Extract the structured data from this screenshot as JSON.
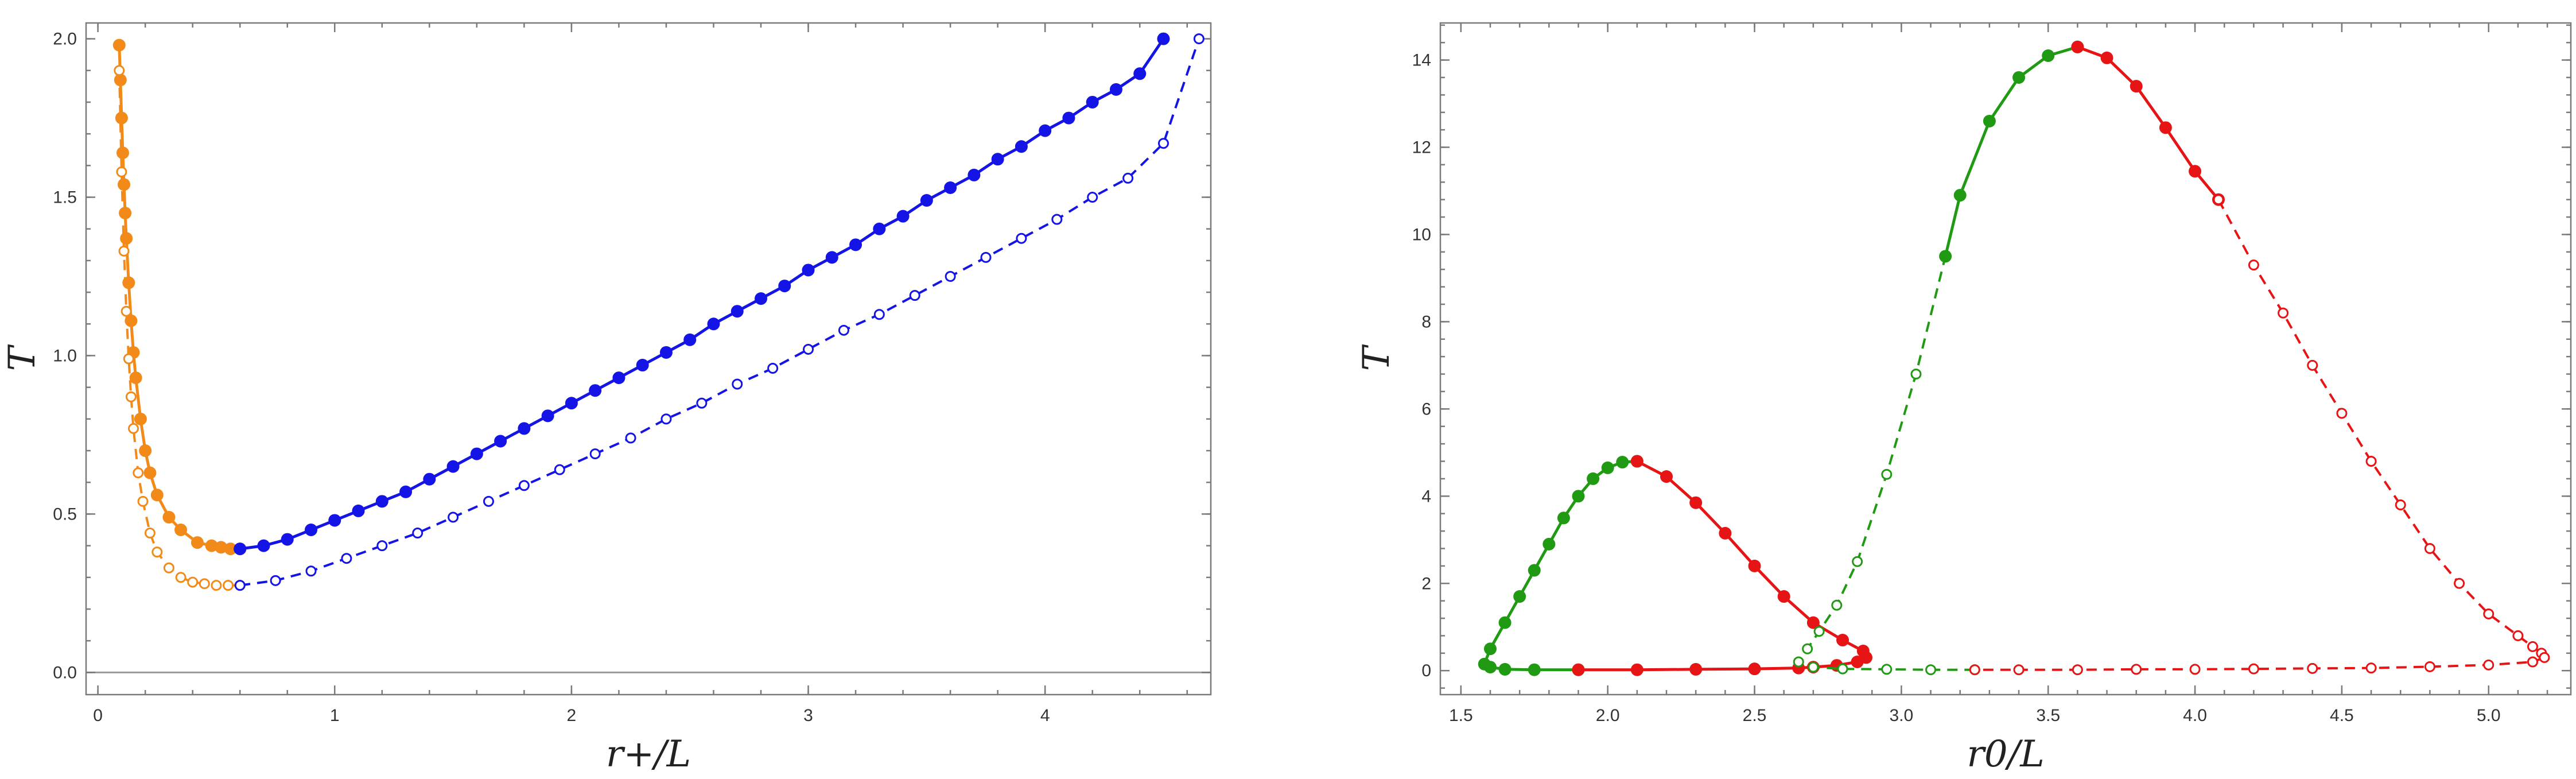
{
  "chart_data": [
    {
      "type": "line",
      "xlabel": "r+/L",
      "ylabel": "T",
      "xlim": [
        -0.05,
        4.7
      ],
      "ylim": [
        -0.07,
        2.05
      ],
      "xticks": [
        0,
        1,
        2,
        3,
        4
      ],
      "yticks": [
        0.0,
        0.5,
        1.0,
        1.5,
        2.0
      ],
      "xtick_labels": [
        "0",
        "1",
        "2",
        "3",
        "4"
      ],
      "ytick_labels": [
        "0.0",
        "0.5",
        "1.0",
        "1.5",
        "2.0"
      ],
      "zero_line": true,
      "grid": false,
      "legend": "none",
      "series": [
        {
          "color": "#f28a1a",
          "line": "solid",
          "marker": "filled",
          "x": [
            0.09,
            0.095,
            0.1,
            0.105,
            0.11,
            0.115,
            0.12,
            0.13,
            0.14,
            0.15,
            0.16,
            0.18,
            0.2,
            0.22,
            0.25,
            0.3,
            0.35,
            0.42,
            0.48,
            0.52,
            0.56,
            0.6
          ],
          "y": [
            1.98,
            1.87,
            1.75,
            1.64,
            1.54,
            1.45,
            1.37,
            1.23,
            1.11,
            1.01,
            0.93,
            0.8,
            0.7,
            0.63,
            0.56,
            0.49,
            0.45,
            0.41,
            0.4,
            0.395,
            0.39,
            0.39
          ]
        },
        {
          "color": "#f28a1a",
          "line": "dashed",
          "marker": "open",
          "x": [
            0.09,
            0.1,
            0.11,
            0.12,
            0.13,
            0.14,
            0.15,
            0.17,
            0.19,
            0.22,
            0.25,
            0.3,
            0.35,
            0.4,
            0.45,
            0.5,
            0.55,
            0.6
          ],
          "y": [
            1.9,
            1.58,
            1.33,
            1.14,
            0.99,
            0.87,
            0.77,
            0.63,
            0.54,
            0.44,
            0.38,
            0.33,
            0.3,
            0.285,
            0.28,
            0.275,
            0.275,
            0.275
          ]
        },
        {
          "color": "#1414e6",
          "line": "solid",
          "marker": "filled",
          "x": [
            0.6,
            0.7,
            0.8,
            0.9,
            1.0,
            1.1,
            1.2,
            1.3,
            1.4,
            1.5,
            1.6,
            1.7,
            1.8,
            1.9,
            2.0,
            2.1,
            2.2,
            2.3,
            2.4,
            2.5,
            2.6,
            2.7,
            2.8,
            2.9,
            3.0,
            3.1,
            3.2,
            3.3,
            3.4,
            3.5,
            3.6,
            3.7,
            3.8,
            3.9,
            4.0,
            4.1,
            4.2,
            4.3,
            4.4,
            4.5
          ],
          "y": [
            0.39,
            0.4,
            0.42,
            0.45,
            0.48,
            0.51,
            0.54,
            0.57,
            0.61,
            0.65,
            0.69,
            0.73,
            0.77,
            0.81,
            0.85,
            0.89,
            0.93,
            0.97,
            1.01,
            1.05,
            1.1,
            1.14,
            1.18,
            1.22,
            1.27,
            1.31,
            1.35,
            1.4,
            1.44,
            1.49,
            1.53,
            1.57,
            1.62,
            1.66,
            1.71,
            1.75,
            1.8,
            1.84,
            1.89,
            2.0
          ]
        },
        {
          "color": "#1414e6",
          "line": "dashed",
          "marker": "open",
          "x": [
            0.6,
            0.75,
            0.9,
            1.05,
            1.2,
            1.35,
            1.5,
            1.65,
            1.8,
            1.95,
            2.1,
            2.25,
            2.4,
            2.55,
            2.7,
            2.85,
            3.0,
            3.15,
            3.3,
            3.45,
            3.6,
            3.75,
            3.9,
            4.05,
            4.2,
            4.35,
            4.5,
            4.65
          ],
          "y": [
            0.275,
            0.29,
            0.32,
            0.36,
            0.4,
            0.44,
            0.49,
            0.54,
            0.59,
            0.64,
            0.69,
            0.74,
            0.8,
            0.85,
            0.91,
            0.96,
            1.02,
            1.08,
            1.13,
            1.19,
            1.25,
            1.31,
            1.37,
            1.43,
            1.5,
            1.56,
            1.67,
            2.0
          ]
        }
      ]
    },
    {
      "type": "line",
      "xlabel": "r0/L",
      "ylabel": "T",
      "xlim": [
        1.43,
        5.28
      ],
      "ylim": [
        -0.55,
        14.85
      ],
      "xticks": [
        1.5,
        2.0,
        2.5,
        3.0,
        3.5,
        4.0,
        4.5,
        5.0
      ],
      "yticks": [
        0,
        2,
        4,
        6,
        8,
        10,
        12,
        14
      ],
      "xtick_labels": [
        "1.5",
        "2.0",
        "2.5",
        "3.0",
        "3.5",
        "4.0",
        "4.5",
        "5.0"
      ],
      "ytick_labels": [
        "0",
        "2",
        "4",
        "6",
        "8",
        "10",
        "12",
        "14"
      ],
      "zero_line": false,
      "grid": false,
      "legend": "none",
      "series": [
        {
          "color": "#1f9a12",
          "line": "solid",
          "marker": "filled",
          "x": [
            1.9,
            1.75,
            1.65,
            1.6,
            1.58,
            1.6,
            1.65,
            1.7,
            1.75,
            1.8,
            1.85,
            1.9,
            1.95,
            2.0,
            2.05,
            2.1
          ],
          "y": [
            0.02,
            0.02,
            0.03,
            0.08,
            0.15,
            0.5,
            1.1,
            1.7,
            2.3,
            2.9,
            3.5,
            4.0,
            4.4,
            4.65,
            4.78,
            4.8
          ]
        },
        {
          "color": "#e61414",
          "line": "solid",
          "marker": "filled",
          "x": [
            2.1,
            2.2,
            2.3,
            2.4,
            2.5,
            2.6,
            2.7,
            2.8,
            2.87,
            2.88,
            2.85,
            2.78,
            2.7,
            2.65,
            2.5,
            2.3,
            2.1,
            1.9
          ],
          "y": [
            4.8,
            4.45,
            3.85,
            3.15,
            2.4,
            1.7,
            1.1,
            0.7,
            0.45,
            0.3,
            0.2,
            0.12,
            0.08,
            0.06,
            0.04,
            0.03,
            0.02,
            0.02
          ]
        },
        {
          "color": "#1f9a12",
          "line": "dashed",
          "marker": "open",
          "x": [
            3.25,
            3.1,
            2.95,
            2.8,
            2.7,
            2.65,
            2.68,
            2.72,
            2.78,
            2.85,
            2.95,
            3.05,
            3.15
          ],
          "y": [
            0.02,
            0.02,
            0.03,
            0.04,
            0.08,
            0.2,
            0.5,
            0.9,
            1.5,
            2.5,
            4.5,
            6.8,
            9.5
          ]
        },
        {
          "color": "#1f9a12",
          "line": "solid",
          "marker": "filled",
          "x": [
            3.15,
            3.2,
            3.3,
            3.4,
            3.5,
            3.6
          ],
          "y": [
            9.5,
            10.9,
            12.6,
            13.6,
            14.1,
            14.3
          ]
        },
        {
          "color": "#e61414",
          "line": "solid",
          "marker": "filled",
          "x": [
            3.6,
            3.7,
            3.8,
            3.9,
            4.0,
            4.08
          ],
          "y": [
            14.3,
            14.05,
            13.4,
            12.45,
            11.45,
            10.8
          ]
        },
        {
          "color": "#e61414",
          "line": "dashed",
          "marker": "open",
          "x": [
            4.08,
            4.2,
            4.3,
            4.4,
            4.5,
            4.6,
            4.7,
            4.8,
            4.9,
            5.0,
            5.1,
            5.15,
            5.18,
            5.19,
            5.15,
            5.0,
            4.8,
            4.6,
            4.4,
            4.2,
            4.0,
            3.8,
            3.6,
            3.4,
            3.25
          ],
          "y": [
            10.8,
            9.3,
            8.2,
            7.0,
            5.9,
            4.8,
            3.8,
            2.8,
            2.0,
            1.3,
            0.8,
            0.55,
            0.4,
            0.3,
            0.2,
            0.13,
            0.09,
            0.06,
            0.05,
            0.04,
            0.03,
            0.03,
            0.02,
            0.02,
            0.02
          ]
        }
      ]
    }
  ]
}
